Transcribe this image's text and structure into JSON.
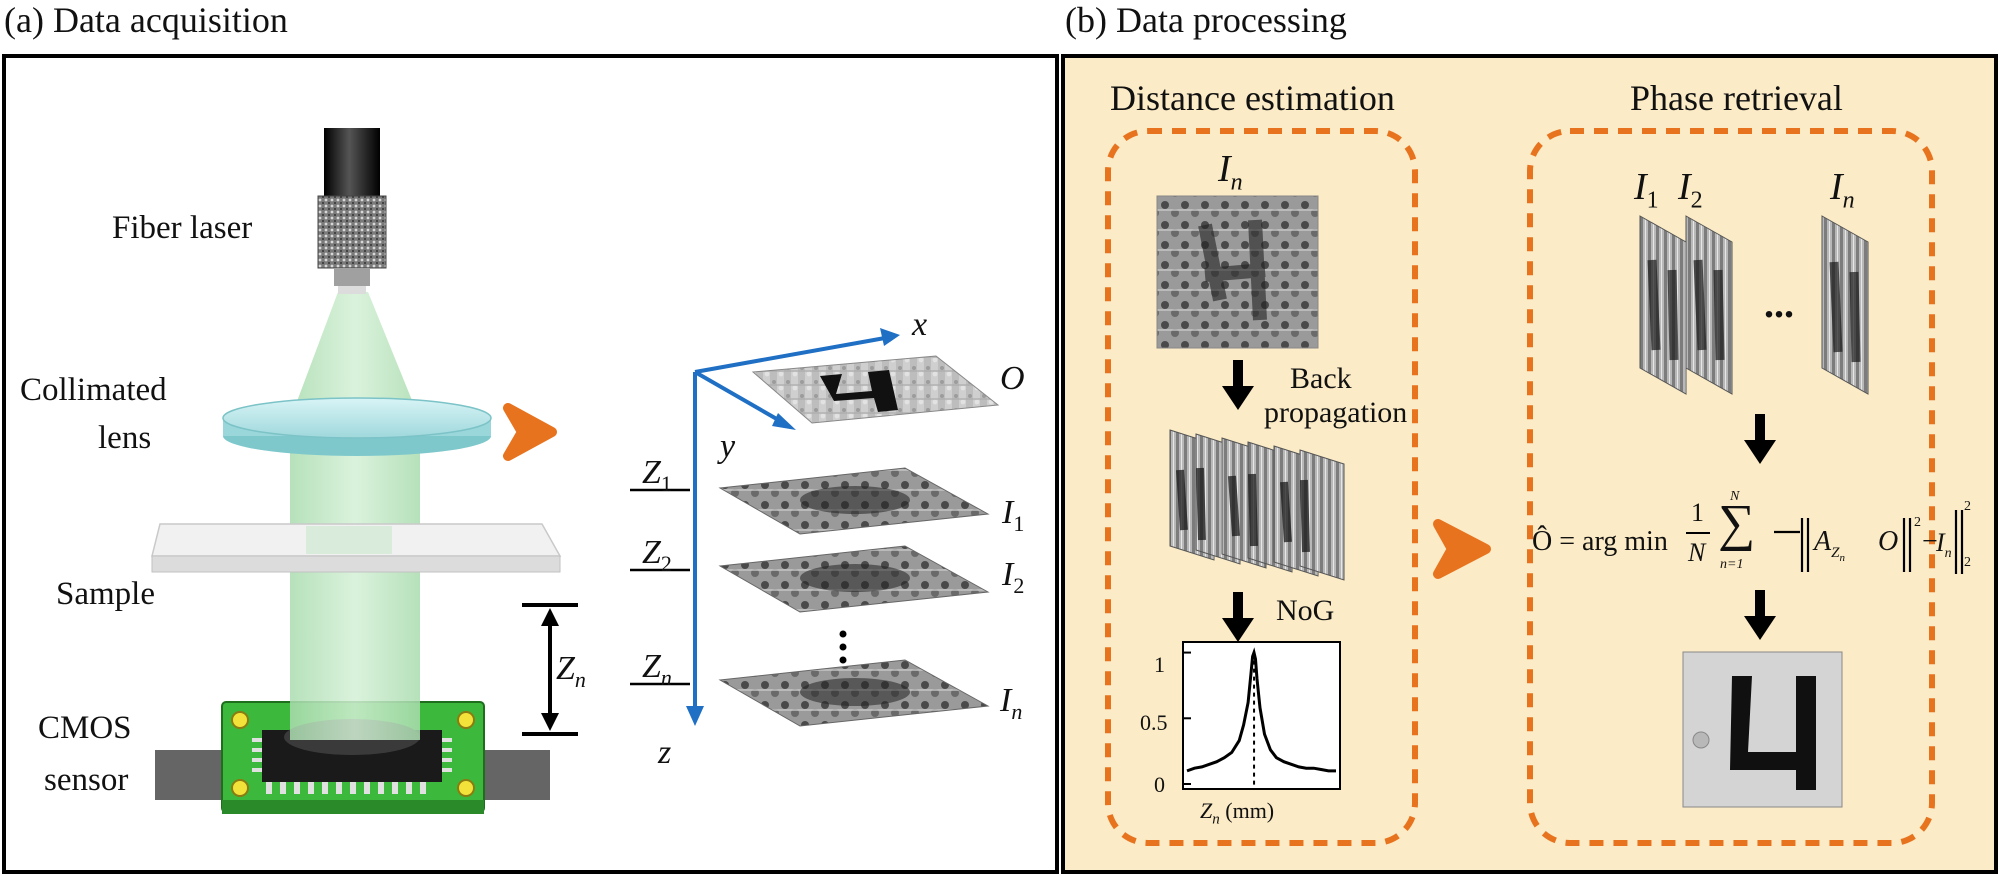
{
  "panel_a": {
    "title": "(a) Data acquisition",
    "fiber_laser_label": "Fiber laser",
    "collimated_label_1": "Collimated",
    "collimated_label_2": "lens",
    "sample_label": "Sample",
    "cmos_label_1": "CMOS",
    "cmos_label_2": "sensor",
    "zn_base": "Z",
    "zn_sub": "n",
    "axis_x": "x",
    "axis_y": "y",
    "axis_z": "z",
    "object_label": "O",
    "plane_labels": [
      {
        "z": "Z",
        "z_sub": "1",
        "i": "I",
        "i_sub": "1"
      },
      {
        "z": "Z",
        "z_sub": "2",
        "i": "I",
        "i_sub": "2"
      },
      {
        "z": "Z",
        "z_sub": "n",
        "i": "I",
        "i_sub": "n"
      }
    ]
  },
  "panel_b": {
    "title": "(b) Data processing",
    "distance_title": "Distance estimation",
    "phase_title": "Phase retrieval",
    "in_label": "I",
    "in_sub": "n",
    "back_label_1": "Back",
    "back_label_2": "propagation",
    "nog_label": "NoG",
    "stack_labels": [
      {
        "base": "I",
        "sub": "1"
      },
      {
        "base": "I",
        "sub": "2"
      },
      {
        "base": "I",
        "sub": "n"
      }
    ],
    "ellipsis": "...",
    "formula": {
      "lhs": "Ô = arg min",
      "frac_num": "1",
      "frac_den": "N",
      "sum_top": "N",
      "sum_bottom": "n=1",
      "a": "A",
      "a_sub": "Z",
      "a_subsub": "n",
      "o": "O",
      "exp": "2",
      "minus": "−",
      "i": "I",
      "i_sub": "n",
      "norm_sub": "2",
      "norm_exp": "2"
    },
    "nog_chart": {
      "xlabel_base": "Z",
      "xlabel_sub": "n",
      "xlabel_unit": "(mm)",
      "y_ticks": [
        "1",
        "0.5",
        "0"
      ]
    }
  },
  "colors": {
    "orange": "#e8731f",
    "panel_b_bg": "#fbebc6",
    "axis_blue": "#1f6fc4",
    "pcb_green": "#3cb83c",
    "beam_green": "#bfe8c3"
  },
  "chart_data": {
    "type": "line",
    "title": "",
    "xlabel": "Z_n (mm)",
    "ylabel": "",
    "ylim": [
      0,
      1.05
    ],
    "y_ticks": [
      0,
      0.5,
      1
    ],
    "series": [
      {
        "x": [
          0,
          0.05,
          0.1,
          0.15,
          0.2,
          0.25,
          0.3,
          0.35,
          0.38,
          0.41,
          0.43,
          0.44,
          0.45,
          0.46,
          0.47,
          0.49,
          0.52,
          0.56,
          0.6,
          0.65,
          0.7,
          0.75,
          0.8,
          0.85,
          0.9,
          0.95,
          1.0
        ],
        "y": [
          0.1,
          0.12,
          0.13,
          0.15,
          0.17,
          0.2,
          0.24,
          0.33,
          0.45,
          0.62,
          0.85,
          0.97,
          1.0,
          0.95,
          0.8,
          0.58,
          0.38,
          0.26,
          0.2,
          0.17,
          0.15,
          0.13,
          0.12,
          0.12,
          0.11,
          0.1,
          0.1
        ]
      }
    ],
    "peak_marker_x": 0.45
  }
}
